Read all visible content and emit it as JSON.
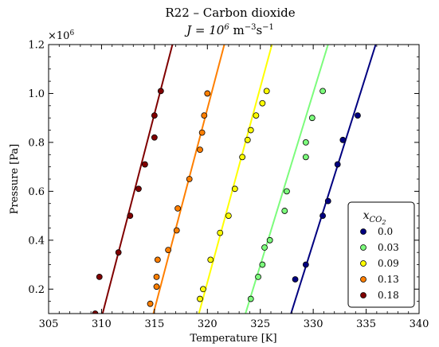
{
  "chart_data": {
    "type": "scatter",
    "title": "R22 – Carbon dioxide",
    "subtitle": "J = 10⁶ m⁻³s⁻¹",
    "xlabel": "Temperature [K]",
    "ylabel": "Pressure [Pa]",
    "y_multiplier_label": "×10⁶",
    "xlim": [
      305,
      340
    ],
    "ylim": [
      0.1,
      1.2
    ],
    "x_ticks": [
      305,
      310,
      315,
      320,
      325,
      330,
      335,
      340
    ],
    "y_ticks": [
      0.2,
      0.4,
      0.6,
      0.8,
      1.0,
      1.2
    ],
    "x_tick_labels": [
      "305",
      "310",
      "315",
      "320",
      "325",
      "330",
      "335",
      "340"
    ],
    "y_tick_labels": [
      "0.2",
      "0.4",
      "0.6",
      "0.8",
      "1.0",
      "1.2"
    ],
    "grid": false,
    "legend": {
      "title": "x_CO2",
      "placement": "lower-right"
    },
    "series": [
      {
        "name": "0.0",
        "color": "#000080",
        "points": [
          [
            328.3,
            0.24
          ],
          [
            329.3,
            0.3
          ],
          [
            330.9,
            0.5
          ],
          [
            331.4,
            0.56
          ],
          [
            332.3,
            0.71
          ],
          [
            332.8,
            0.81
          ],
          [
            334.2,
            0.91
          ]
        ],
        "line": [
          [
            327.9,
            0.1
          ],
          [
            335.9,
            1.2
          ]
        ]
      },
      {
        "name": "0.03",
        "color": "#7cfc7c",
        "points": [
          [
            324.1,
            0.16
          ],
          [
            324.8,
            0.25
          ],
          [
            325.2,
            0.3
          ],
          [
            325.4,
            0.37
          ],
          [
            325.9,
            0.4
          ],
          [
            327.3,
            0.52
          ],
          [
            327.5,
            0.6
          ],
          [
            329.3,
            0.74
          ],
          [
            329.3,
            0.8
          ],
          [
            329.9,
            0.9
          ],
          [
            330.9,
            1.01
          ]
        ],
        "line": [
          [
            323.6,
            0.1
          ],
          [
            331.4,
            1.2
          ]
        ]
      },
      {
        "name": "0.09",
        "color": "#ffff00",
        "points": [
          [
            319.3,
            0.16
          ],
          [
            319.6,
            0.2
          ],
          [
            320.3,
            0.32
          ],
          [
            321.2,
            0.43
          ],
          [
            322.0,
            0.5
          ],
          [
            322.6,
            0.61
          ],
          [
            323.3,
            0.74
          ],
          [
            323.8,
            0.81
          ],
          [
            324.1,
            0.85
          ],
          [
            324.6,
            0.91
          ],
          [
            325.2,
            0.96
          ],
          [
            325.6,
            1.01
          ]
        ],
        "line": [
          [
            319.2,
            0.1
          ],
          [
            326.1,
            1.2
          ]
        ]
      },
      {
        "name": "0.13",
        "color": "#ff7f00",
        "points": [
          [
            314.6,
            0.14
          ],
          [
            315.2,
            0.21
          ],
          [
            315.2,
            0.25
          ],
          [
            315.3,
            0.32
          ],
          [
            316.3,
            0.36
          ],
          [
            317.1,
            0.44
          ],
          [
            317.2,
            0.53
          ],
          [
            318.3,
            0.65
          ],
          [
            319.3,
            0.77
          ],
          [
            319.5,
            0.84
          ],
          [
            319.7,
            0.91
          ],
          [
            320.0,
            1.0
          ]
        ],
        "line": [
          [
            314.9,
            0.1
          ],
          [
            321.6,
            1.2
          ]
        ]
      },
      {
        "name": "0.18",
        "color": "#800000",
        "points": [
          [
            309.4,
            0.1
          ],
          [
            309.8,
            0.25
          ],
          [
            311.6,
            0.35
          ],
          [
            312.7,
            0.5
          ],
          [
            313.5,
            0.61
          ],
          [
            314.1,
            0.71
          ],
          [
            315.0,
            0.82
          ],
          [
            315.0,
            0.91
          ],
          [
            315.6,
            1.01
          ]
        ],
        "line": [
          [
            310.1,
            0.1
          ],
          [
            316.7,
            1.2
          ]
        ]
      }
    ]
  }
}
